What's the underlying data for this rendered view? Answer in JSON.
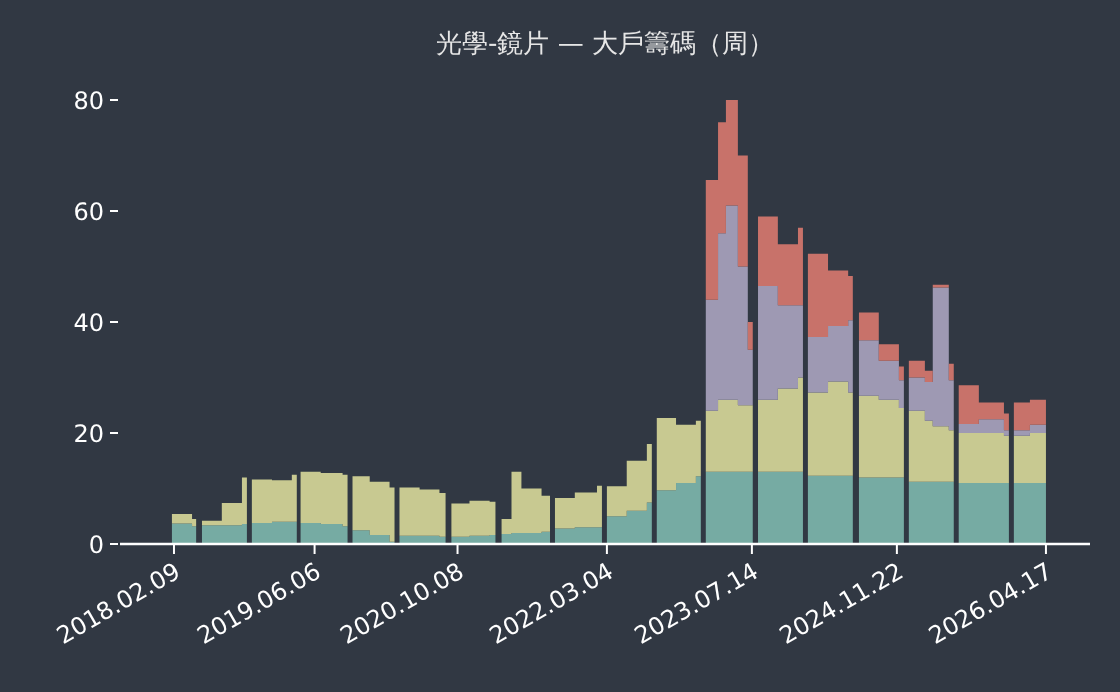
{
  "chart_data": {
    "type": "area",
    "title": "光學-鏡片 — 大戶籌碼（周）",
    "stacked": true,
    "x": [
      "2018-02-02",
      "2018-04-12",
      "2018-04-26",
      "2018-05-16",
      "2018-07-23",
      "2018-09-30",
      "2018-10-17",
      "2018-11-03",
      "2019-01-11",
      "2019-03-20",
      "2019-04-06",
      "2019-04-19",
      "2019-06-27",
      "2019-09-10",
      "2019-09-27",
      "2019-10-14",
      "2019-12-12",
      "2020-02-18",
      "2020-03-06",
      "2020-03-23",
      "2020-05-31",
      "2020-08-07",
      "2020-08-28",
      "2020-09-17",
      "2020-11-18",
      "2021-01-26",
      "2021-02-15",
      "2021-03-08",
      "2021-04-11",
      "2021-05-15",
      "2021-07-23",
      "2021-08-21",
      "2021-09-07",
      "2021-11-14",
      "2022-01-29",
      "2022-02-15",
      "2022-03-04",
      "2022-05-11",
      "2022-07-19",
      "2022-08-05",
      "2022-08-22",
      "2022-10-27",
      "2023-01-03",
      "2023-01-20",
      "2023-02-06",
      "2023-03-20",
      "2023-04-16",
      "2023-05-27",
      "2023-06-30",
      "2023-07-17",
      "2023-08-04",
      "2023-10-11",
      "2023-12-19",
      "2024-01-05",
      "2024-01-22",
      "2024-03-31",
      "2024-06-08",
      "2024-06-24",
      "2024-07-15",
      "2024-09-21",
      "2024-11-29",
      "2024-12-16",
      "2025-01-02",
      "2025-02-26",
      "2025-03-25",
      "2025-05-19",
      "2025-06-05",
      "2025-06-22",
      "2025-08-30",
      "2025-11-24",
      "2025-12-11",
      "2025-12-28",
      "2026-02-21",
      "2026-04-17"
    ],
    "series": [
      {
        "color": "#76aba3",
        "values": [
          3.7,
          3.2,
          null,
          3.4,
          3.4,
          3.6,
          null,
          3.8,
          4,
          4,
          null,
          3.8,
          3.6,
          3.2,
          null,
          2.5,
          1.6,
          0.4,
          null,
          1.5,
          1.5,
          1.3,
          null,
          1.3,
          1.5,
          1.6,
          null,
          1.8,
          2,
          2,
          2.2,
          null,
          2.8,
          3,
          3,
          null,
          5,
          6,
          7.5,
          null,
          9.7,
          11,
          12.2,
          null,
          13,
          13,
          13,
          13,
          13,
          null,
          13,
          13,
          13,
          null,
          12.3,
          12.3,
          12.3,
          null,
          12,
          12,
          12,
          null,
          11.2,
          11.2,
          11.2,
          11.2,
          null,
          11,
          11,
          11,
          null,
          11,
          11,
          11
        ]
      },
      {
        "color": "#c8c991",
        "values": [
          1.7,
          1.3,
          null,
          0.8,
          4,
          8.4,
          null,
          7.8,
          7.5,
          8.5,
          null,
          9.2,
          9.2,
          9.3,
          null,
          9.7,
          9.6,
          9.8,
          null,
          8.7,
          8.3,
          7.9,
          null,
          6,
          6.3,
          6,
          null,
          2.7,
          11,
          8,
          6.5,
          null,
          5.5,
          6.3,
          7.5,
          null,
          5.4,
          9,
          10.5,
          null,
          13,
          10.5,
          10,
          null,
          11,
          13,
          13,
          12,
          12,
          null,
          13,
          15,
          17,
          null,
          15,
          17,
          15,
          null,
          14.7,
          14,
          12.5,
          null,
          12.8,
          11,
          10,
          9.3,
          null,
          9,
          9,
          8.5,
          null,
          8.5,
          9,
          9.5
        ]
      },
      {
        "color": "#9e99b3",
        "values": [
          null,
          null,
          null,
          null,
          null,
          null,
          null,
          null,
          null,
          null,
          null,
          null,
          null,
          null,
          null,
          null,
          null,
          null,
          null,
          null,
          null,
          null,
          null,
          null,
          null,
          null,
          null,
          null,
          null,
          null,
          null,
          null,
          null,
          null,
          null,
          null,
          null,
          null,
          null,
          null,
          null,
          null,
          null,
          null,
          20,
          30,
          35,
          25,
          10,
          null,
          20.5,
          15,
          13,
          null,
          10,
          10,
          13,
          null,
          10,
          7,
          5,
          null,
          6,
          7,
          25,
          9,
          null,
          1.6,
          2.5,
          1,
          null,
          1,
          1.5,
          1.5
        ]
      },
      {
        "color": "#c8726a",
        "values": [
          null,
          null,
          null,
          null,
          null,
          null,
          null,
          null,
          null,
          null,
          null,
          null,
          null,
          null,
          null,
          null,
          null,
          null,
          null,
          null,
          null,
          null,
          null,
          null,
          null,
          null,
          null,
          null,
          null,
          null,
          null,
          null,
          null,
          null,
          null,
          null,
          null,
          null,
          null,
          null,
          null,
          null,
          null,
          null,
          21.6,
          20,
          19,
          20,
          5,
          null,
          12.5,
          11,
          14,
          null,
          15,
          10,
          8,
          null,
          5,
          3,
          2.5,
          null,
          3,
          2,
          0.5,
          3,
          null,
          7,
          3,
          3,
          null,
          5,
          4.5,
          4.5
        ]
      }
    ],
    "xlim": [
      "2017-08-08",
      "2026-09-15"
    ],
    "xticks": [
      {
        "value": "2018-02-09",
        "label": "2018.02.09"
      },
      {
        "value": "2019-06-06",
        "label": "2019.06.06"
      },
      {
        "value": "2020-10-08",
        "label": "2020.10.08"
      },
      {
        "value": "2022-03-04",
        "label": "2022.03.04"
      },
      {
        "value": "2023-07-14",
        "label": "2023.07.14"
      },
      {
        "value": "2024-11-22",
        "label": "2024.11.22"
      },
      {
        "value": "2026-04-17",
        "label": "2026.04.17"
      }
    ],
    "ylim": [
      0,
      80
    ],
    "yticks": [
      0,
      20,
      40,
      60,
      80
    ]
  }
}
